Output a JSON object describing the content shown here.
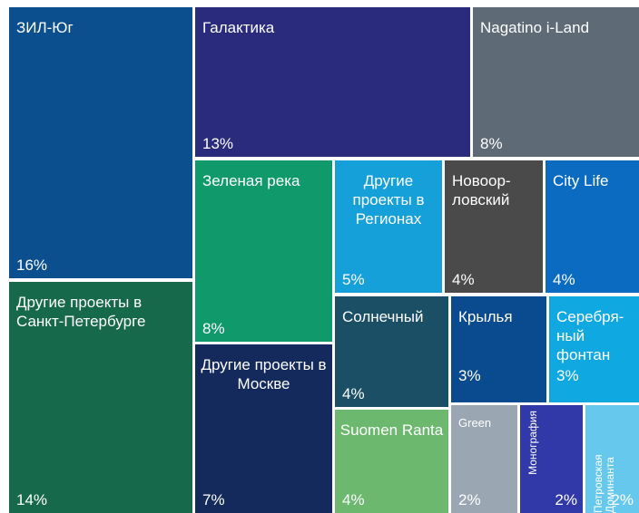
{
  "chart_data": {
    "type": "treemap",
    "categories": [
      "ЗИЛ-Юг",
      "Другие проекты в Санкт-Петербурге",
      "Галактика",
      "Nagatino i-Land",
      "Зеленая река",
      "Другие проекты в Москве",
      "Другие проекты в Регионах",
      "Новоор-ловский",
      "City Life",
      "Солнечный",
      "Крылья",
      "Серебря-ный фонтан",
      "Suomen Ranta",
      "Green",
      "Монография",
      "Петровская Доминанта"
    ],
    "values": [
      16,
      14,
      13,
      8,
      8,
      7,
      5,
      4,
      4,
      4,
      3,
      3,
      4,
      2,
      2,
      2
    ],
    "value_labels": [
      "16%",
      "14%",
      "13%",
      "8%",
      "8%",
      "7%",
      "5%",
      "4%",
      "4%",
      "4%",
      "3%",
      "3%",
      "4%",
      "2%",
      "2%",
      "2%"
    ],
    "colors": [
      "#0b4f8f",
      "#17694c",
      "#2b2b7d",
      "#5e6a75",
      "#10996a",
      "#152a5c",
      "#16a0da",
      "#4a4a4a",
      "#0a6bc0",
      "#1b4f66",
      "#0a4a8f",
      "#10a8e0",
      "#6cb86e",
      "#9aa7b2",
      "#3138a8",
      "#66c8ec"
    ]
  }
}
